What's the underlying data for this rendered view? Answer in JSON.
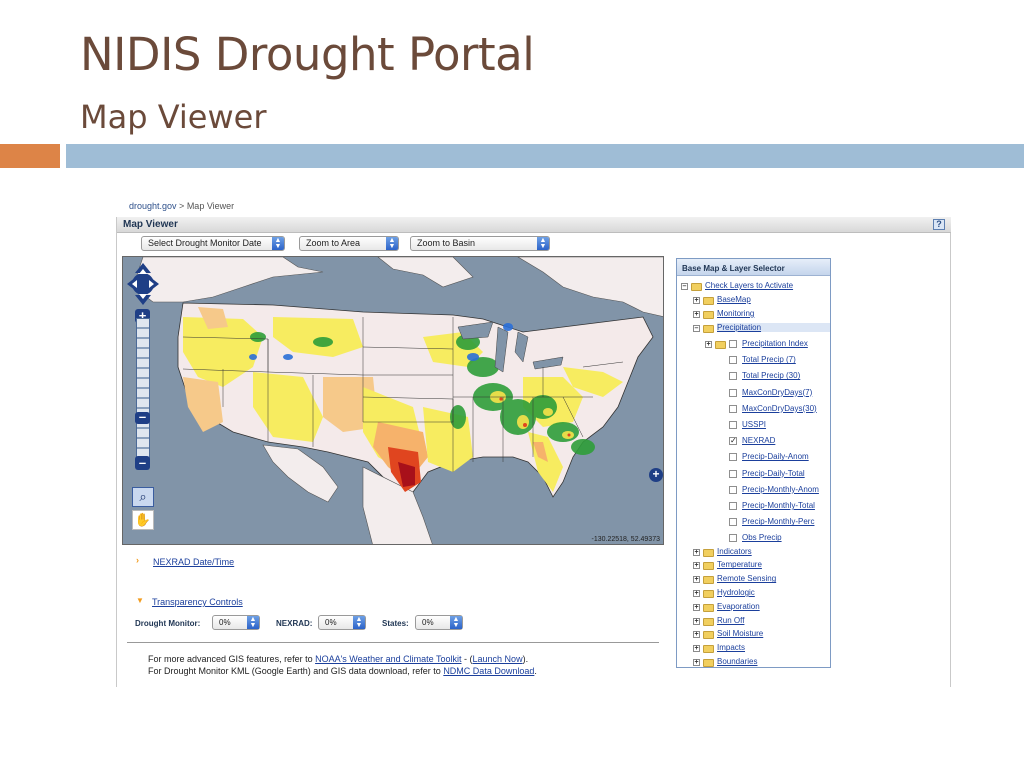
{
  "slide": {
    "title": "NIDIS Drought Portal",
    "subtitle": "Map Viewer"
  },
  "breadcrumb": {
    "root": "drought.gov",
    "separator": " > ",
    "current": "Map Viewer"
  },
  "viewer": {
    "title": "Map Viewer",
    "help": "?",
    "selects": {
      "date": "Select Drought Monitor Date",
      "area": "Zoom to Area",
      "basin": "Zoom to Basin"
    },
    "coordinates": "-130.22518, 52.49373"
  },
  "layer_panel": {
    "title": "Base Map & Layer Selector",
    "root": "Check Layers to Activate",
    "groups_top": [
      "BaseMap",
      "Monitoring"
    ],
    "selected_group": "Precipitation",
    "precip_layers": [
      {
        "label": "Precipitation Index",
        "checked": false
      },
      {
        "label": "Total Precip (7)",
        "checked": false
      },
      {
        "label": "Total Precip (30)",
        "checked": false
      },
      {
        "label": "MaxConDryDays(7)",
        "checked": false
      },
      {
        "label": "MaxConDryDays(30)",
        "checked": false
      },
      {
        "label": "USSPI",
        "checked": false
      },
      {
        "label": "NEXRAD",
        "checked": true
      },
      {
        "label": "Precip-Daily-Anom",
        "checked": false
      },
      {
        "label": "Precip-Daily-Total",
        "checked": false
      },
      {
        "label": "Precip-Monthly-Anom",
        "checked": false
      },
      {
        "label": "Precip-Monthly-Total",
        "checked": false
      },
      {
        "label": "Precip-Monthly-Perc",
        "checked": false
      },
      {
        "label": "Obs Precip",
        "checked": false
      }
    ],
    "groups_bottom": [
      "Indicators",
      "Temperature",
      "Remote Sensing",
      "Hydrologic",
      "Evaporation",
      "Run Off",
      "Soil Moisture",
      "Impacts",
      "Boundaries"
    ]
  },
  "below_map": {
    "nexrad_link": "NEXRAD Date/Time",
    "transparency_link": "Transparency Controls",
    "controls": [
      {
        "label": "Drought Monitor:",
        "value": "0%"
      },
      {
        "label": "NEXRAD:",
        "value": "0%"
      },
      {
        "label": "States:",
        "value": "0%"
      }
    ]
  },
  "footer": {
    "line1_prefix": "For more advanced GIS features, refer to ",
    "line1_link1": "NOAA's Weather and Climate Toolkit",
    "line1_mid": " - (",
    "line1_link2": "Launch Now",
    "line1_suffix": ").",
    "line2_prefix": "For Drought Monitor KML (Google Earth) and GIS data download, refer to ",
    "line2_link": "NDMC Data Download",
    "line2_suffix": "."
  },
  "colors": {
    "title_brown": "#6b4a3a",
    "accent_orange": "#dd8447",
    "accent_blue": "#9fbdd6",
    "link_blue": "#1b3f9c"
  }
}
